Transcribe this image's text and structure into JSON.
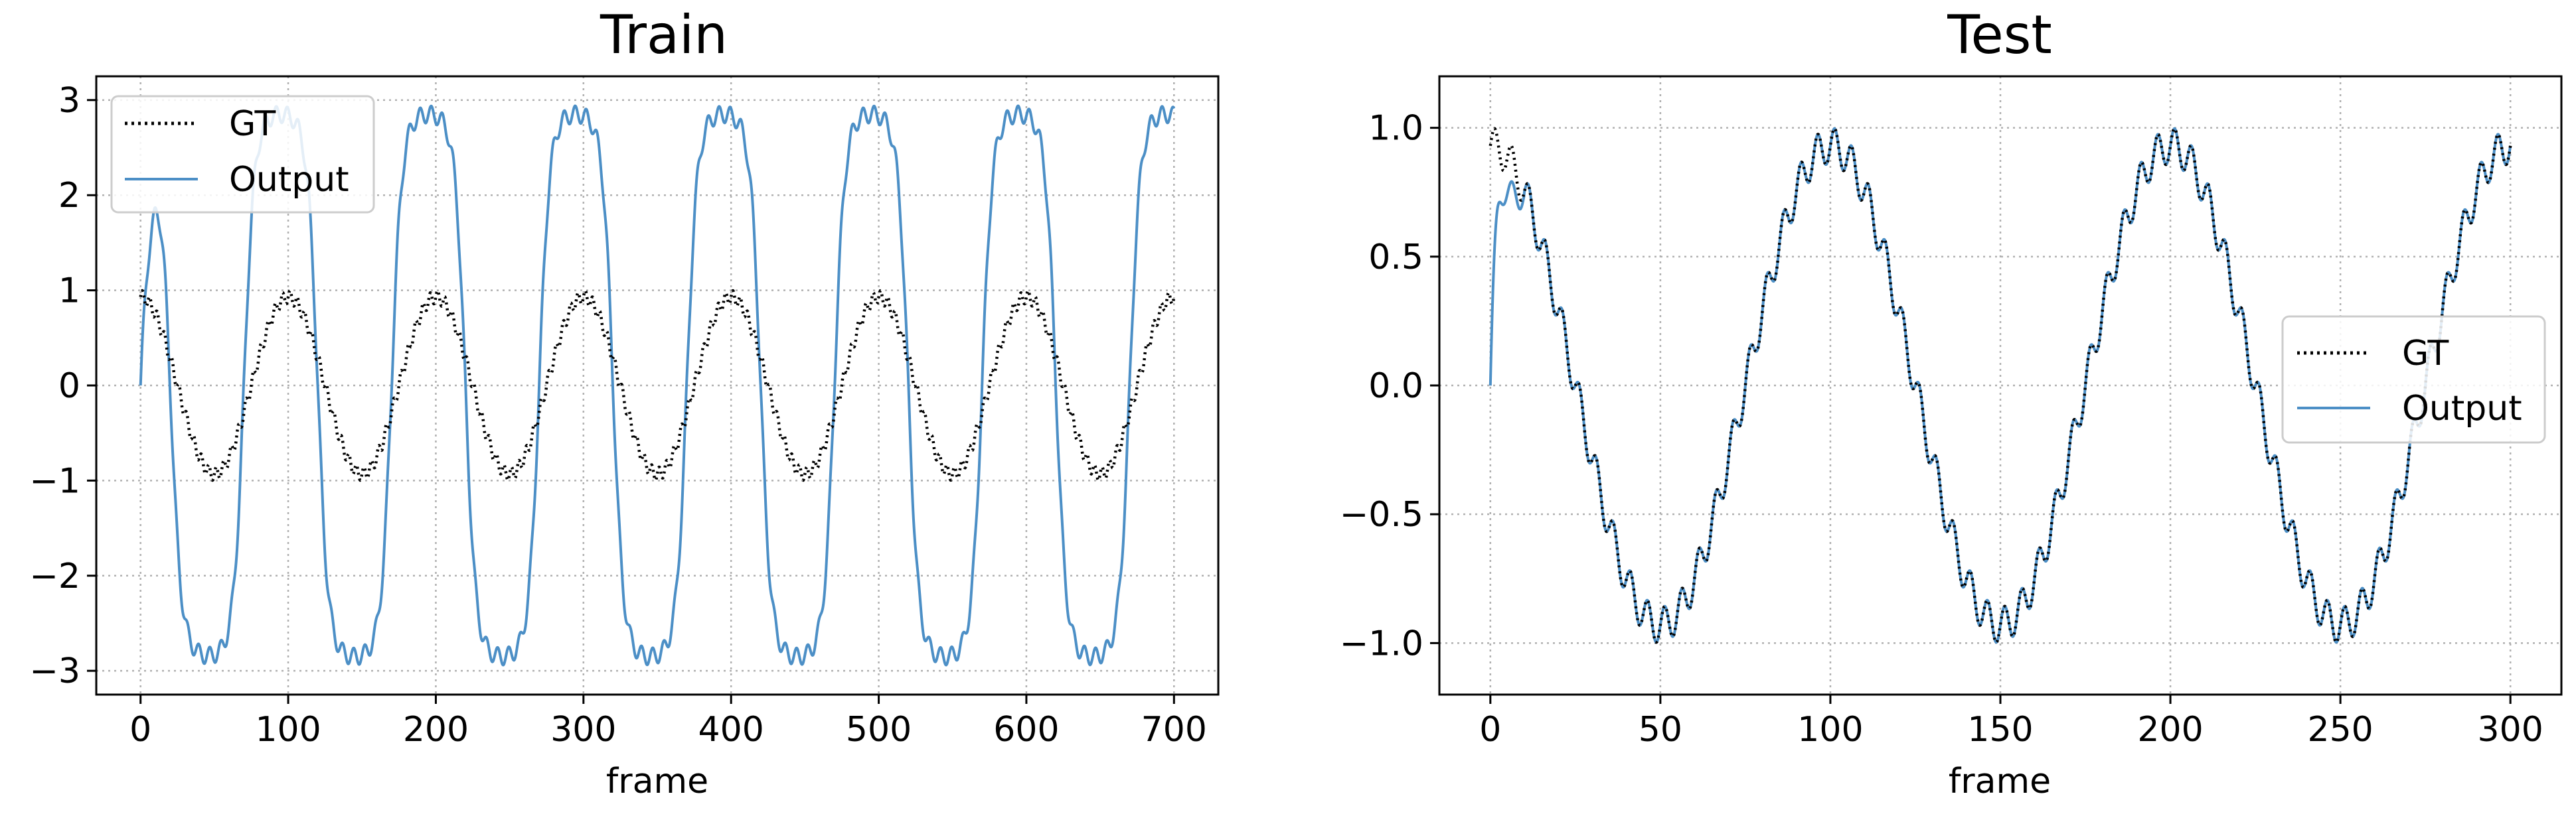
{
  "chart_data": [
    {
      "type": "line",
      "title": "Train",
      "xlabel": "frame",
      "ylabel": "",
      "xlim": [
        -30,
        730
      ],
      "ylim": [
        -3.25,
        3.25
      ],
      "xticks": [
        0,
        100,
        200,
        300,
        400,
        500,
        600,
        700
      ],
      "yticks": [
        -3,
        -2,
        -1,
        0,
        1,
        2,
        3
      ],
      "xtick_labels": [
        "0",
        "100",
        "200",
        "300",
        "400",
        "500",
        "600",
        "700"
      ],
      "ytick_labels": [
        "−3",
        "−2",
        "−1",
        "0",
        "1",
        "2",
        "3"
      ],
      "grid": true,
      "legend_position": "upper-left",
      "x_range": [
        0,
        700
      ],
      "series": [
        {
          "name": "GT",
          "style": "dotted",
          "color": "#000000",
          "formula": "0.93*sin(2*pi*(t+25)/100) + 0.07*sin(2*pi*t/5)",
          "sample_values": [
            {
              "x": 0,
              "y": 1.0
            },
            {
              "x": 25,
              "y": 0.0
            },
            {
              "x": 50,
              "y": -1.1
            },
            {
              "x": 95,
              "y": 1.05
            }
          ]
        },
        {
          "name": "Output",
          "style": "solid",
          "color": "#4c8fc6",
          "formula": "saturating response: starts at 0, reaches -3 near frame 50, +3 near frame 95, period 100",
          "sample_values": [
            {
              "x": 0,
              "y": 0.0
            },
            {
              "x": 45,
              "y": -2.95
            },
            {
              "x": 95,
              "y": 2.95
            },
            {
              "x": 145,
              "y": -2.95
            },
            {
              "x": 700,
              "y": 2.4
            }
          ]
        }
      ]
    },
    {
      "type": "line",
      "title": "Test",
      "xlabel": "frame",
      "ylabel": "",
      "xlim": [
        -15,
        315
      ],
      "ylim": [
        -1.2,
        1.2
      ],
      "xticks": [
        0,
        50,
        100,
        150,
        200,
        250,
        300
      ],
      "yticks": [
        -1.0,
        -0.5,
        0.0,
        0.5,
        1.0
      ],
      "xtick_labels": [
        "0",
        "50",
        "100",
        "150",
        "200",
        "250",
        "300"
      ],
      "ytick_labels": [
        "−1.0",
        "−0.5",
        "0.0",
        "0.5",
        "1.0"
      ],
      "grid": true,
      "legend_position": "center-right",
      "x_range": [
        0,
        300
      ],
      "series": [
        {
          "name": "GT",
          "style": "dotted",
          "color": "#000000",
          "formula": "0.93*sin(2*pi*(t+25)/100) + 0.07*sin(2*pi*t/5)",
          "sample_values": [
            {
              "x": 0,
              "y": 1.0
            },
            {
              "x": 50,
              "y": -1.1
            },
            {
              "x": 95,
              "y": 1.08
            },
            {
              "x": 150,
              "y": -1.1
            },
            {
              "x": 300,
              "y": 0.92
            }
          ]
        },
        {
          "name": "Output",
          "style": "solid",
          "color": "#4c8fc6",
          "formula": "tracks GT after a fast rise from 0 at frame 0",
          "sample_values": [
            {
              "x": 0,
              "y": 0.0
            },
            {
              "x": 4,
              "y": 0.88
            },
            {
              "x": 50,
              "y": -1.1
            },
            {
              "x": 95,
              "y": 1.08
            },
            {
              "x": 300,
              "y": 0.92
            }
          ]
        }
      ]
    }
  ]
}
